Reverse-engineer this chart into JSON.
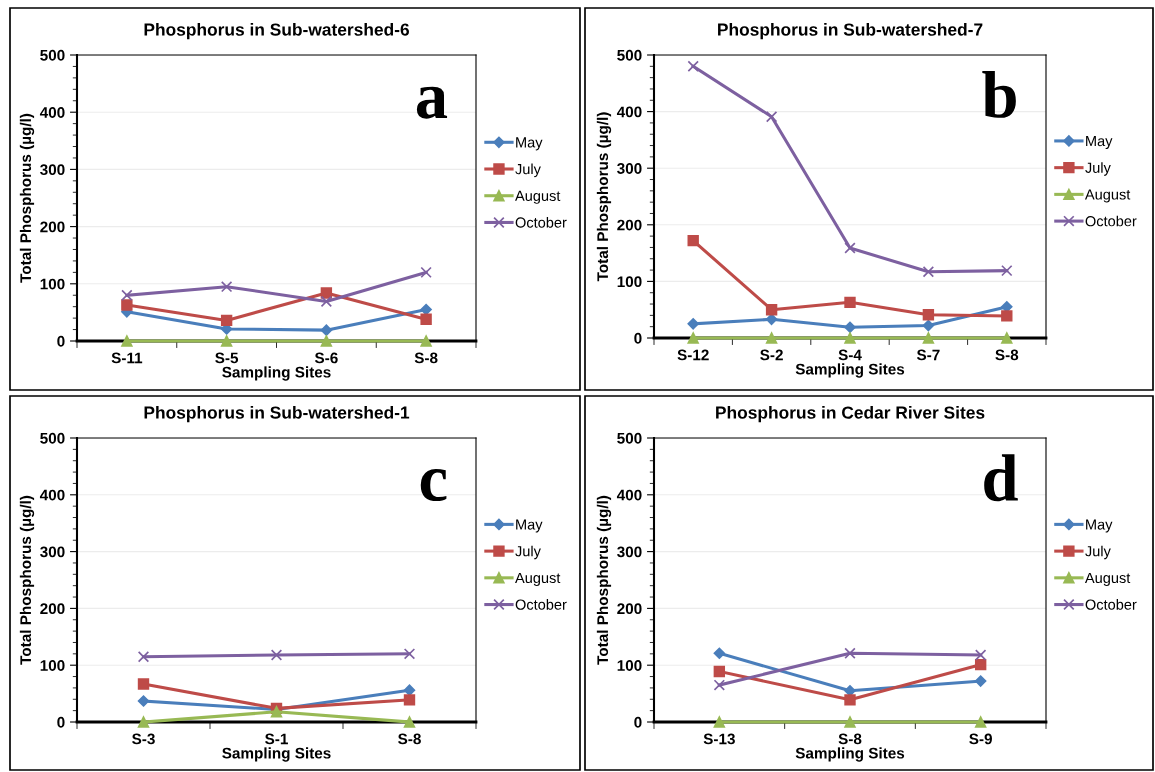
{
  "chart_data": [
    {
      "type": "line",
      "title": "Phosphorus in Sub-watershed-6",
      "xlabel": "Sampling Sites",
      "ylabel": "Total Phosphorus (µg/l)",
      "categories": [
        "S-11",
        "S-5",
        "S-6",
        "S-8"
      ],
      "ylim": [
        0,
        500
      ],
      "yticks": [
        0,
        100,
        200,
        300,
        400,
        500
      ],
      "grid": "y",
      "legend": "right",
      "annotations": [
        "a"
      ],
      "series": [
        {
          "name": "May",
          "color": "#4a7ebb",
          "marker": "diamond",
          "values": [
            51,
            21,
            19,
            55
          ]
        },
        {
          "name": "July",
          "color": "#be4b48",
          "marker": "square",
          "values": [
            63,
            36,
            84,
            38
          ]
        },
        {
          "name": "August",
          "color": "#98b954",
          "marker": "triangle",
          "values": [
            0,
            0,
            0,
            0
          ]
        },
        {
          "name": "October",
          "color": "#7d60a0",
          "marker": "cross",
          "values": [
            80,
            95,
            69,
            120
          ]
        }
      ]
    },
    {
      "type": "line",
      "title": "Phosphorus in Sub-watershed-7",
      "xlabel": "Sampling Sites",
      "ylabel": "Total Phosphorus (µg/l)",
      "categories": [
        "S-12",
        "S-2",
        "S-4",
        "S-7",
        "S-8"
      ],
      "ylim": [
        0,
        500
      ],
      "yticks": [
        0,
        100,
        200,
        300,
        400,
        500
      ],
      "grid": "y",
      "legend": "right",
      "annotations": [
        "b"
      ],
      "series": [
        {
          "name": "May",
          "color": "#4a7ebb",
          "marker": "diamond",
          "values": [
            25,
            33,
            19,
            22,
            55
          ]
        },
        {
          "name": "July",
          "color": "#be4b48",
          "marker": "square",
          "values": [
            172,
            50,
            63,
            41,
            39
          ]
        },
        {
          "name": "August",
          "color": "#98b954",
          "marker": "triangle",
          "values": [
            0,
            0,
            0,
            0,
            0
          ]
        },
        {
          "name": "October",
          "color": "#7d60a0",
          "marker": "cross",
          "values": [
            480,
            391,
            159,
            117,
            119
          ]
        }
      ]
    },
    {
      "type": "line",
      "title": "Phosphorus in Sub-watershed-1",
      "xlabel": "Sampling Sites",
      "ylabel": "Total Phosphorus (µg/l)",
      "categories": [
        "S-3",
        "S-1",
        "S-8"
      ],
      "ylim": [
        0,
        500
      ],
      "yticks": [
        0,
        100,
        200,
        300,
        400,
        500
      ],
      "grid": "y",
      "legend": "right",
      "annotations": [
        "c"
      ],
      "series": [
        {
          "name": "May",
          "color": "#4a7ebb",
          "marker": "diamond",
          "values": [
            37,
            22,
            56
          ]
        },
        {
          "name": "July",
          "color": "#be4b48",
          "marker": "square",
          "values": [
            67,
            24,
            39
          ]
        },
        {
          "name": "August",
          "color": "#98b954",
          "marker": "triangle",
          "values": [
            0,
            18,
            0
          ]
        },
        {
          "name": "October",
          "color": "#7d60a0",
          "marker": "cross",
          "values": [
            115,
            118,
            120
          ]
        }
      ]
    },
    {
      "type": "line",
      "title": "Phosphorus in Cedar River Sites",
      "xlabel": "Sampling Sites",
      "ylabel": "Total Phosphorus (µg/l)",
      "categories": [
        "S-13",
        "S-8",
        "S-9"
      ],
      "ylim": [
        0,
        500
      ],
      "yticks": [
        0,
        100,
        200,
        300,
        400,
        500
      ],
      "grid": "y",
      "legend": "right",
      "annotations": [
        "d"
      ],
      "series": [
        {
          "name": "May",
          "color": "#4a7ebb",
          "marker": "diamond",
          "values": [
            121,
            55,
            72
          ]
        },
        {
          "name": "July",
          "color": "#be4b48",
          "marker": "square",
          "values": [
            89,
            39,
            101
          ]
        },
        {
          "name": "August",
          "color": "#98b954",
          "marker": "triangle",
          "values": [
            0,
            0,
            0
          ]
        },
        {
          "name": "October",
          "color": "#7d60a0",
          "marker": "cross",
          "values": [
            65,
            121,
            118
          ]
        }
      ]
    }
  ]
}
